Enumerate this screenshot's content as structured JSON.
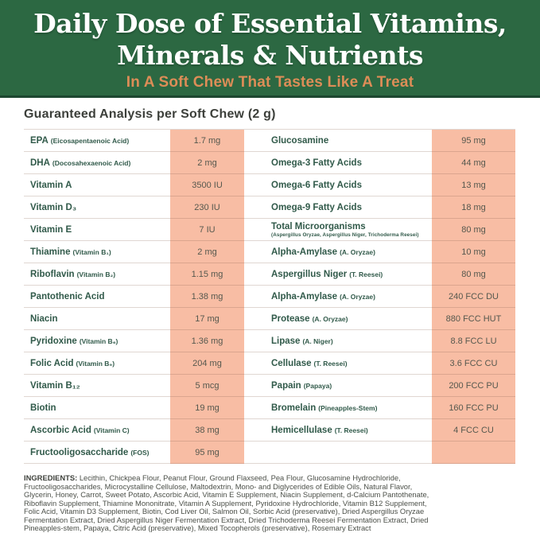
{
  "theme": {
    "header_green": "#2c6842",
    "header_green_dark": "#1d4730",
    "subtitle_orange": "#dd8d57",
    "value_cell_salmon": "#f8bda4",
    "nutrient_name_green": "#315a4a",
    "value_text": "#55584e"
  },
  "header": {
    "title_line1": "Daily Dose of Essential Vitamins,",
    "title_line2": "Minerals & Nutrients",
    "subtitle": "In A Soft Chew That Tastes Like A Treat"
  },
  "analysis": {
    "heading": "Guaranteed Analysis per Soft Chew (2 g)",
    "left_rows": [
      {
        "name": "EPA",
        "sub": "(Eicosapentaenoic Acid)",
        "value": "1.7 mg"
      },
      {
        "name": "DHA",
        "sub": "(Docosahexaenoic Acid)",
        "value": "2 mg"
      },
      {
        "name": "Vitamin A",
        "value": "3500 IU"
      },
      {
        "name": "Vitamin D₃",
        "value": "230 IU"
      },
      {
        "name": "Vitamin E",
        "value": "7 IU"
      },
      {
        "name": "Thiamine",
        "sub": "(Vitamin B₁)",
        "value": "2 mg"
      },
      {
        "name": "Riboflavin",
        "sub": "(Vitamin B₂)",
        "value": "1.15 mg"
      },
      {
        "name": "Pantothenic Acid",
        "value": "1.38 mg"
      },
      {
        "name": "Niacin",
        "value": "17 mg"
      },
      {
        "name": "Pyridoxine",
        "sub": "(Vitamin B₆)",
        "value": "1.36 mg"
      },
      {
        "name": "Folic Acid",
        "sub": "(Vitamin B₉)",
        "value": "204 mg"
      },
      {
        "name": "Vitamin B₁₂",
        "value": "5 mcg"
      },
      {
        "name": "Biotin",
        "value": "19 mg"
      },
      {
        "name": "Ascorbic Acid",
        "sub": "(Vitamin C)",
        "value": "38 mg"
      },
      {
        "name": "Fructooligosaccharide",
        "sub": "(FOS)",
        "value": "95 mg"
      }
    ],
    "right_rows": [
      {
        "name": "Glucosamine",
        "value": "95 mg"
      },
      {
        "name": "Omega-3 Fatty Acids",
        "value": "44 mg"
      },
      {
        "name": "Omega-6 Fatty Acids",
        "value": "13 mg"
      },
      {
        "name": "Omega-9 Fatty Acids",
        "value": "18 mg"
      },
      {
        "name": "Total Microorganisms",
        "note": "(Aspergillus Oryzae, Aspergillus Niger, Trichoderma Reesei)",
        "value": "80 mg"
      },
      {
        "name": "Alpha-Amylase",
        "sub": "(A. Oryzae)",
        "value": "10 mg"
      },
      {
        "name": "Aspergillus Niger",
        "sub": "(T. Reesei)",
        "value": "80 mg"
      },
      {
        "name": "Alpha-Amylase",
        "sub": "(A. Oryzae)",
        "value": "240 FCC DU"
      },
      {
        "name": "Protease",
        "sub": "(A. Oryzae)",
        "value": "880 FCC HUT"
      },
      {
        "name": "Lipase",
        "sub": "(A. Niger)",
        "value": "8.8 FCC LU"
      },
      {
        "name": "Cellulase",
        "sub": "(T. Reesei)",
        "value": "3.6 FCC CU"
      },
      {
        "name": "Papain",
        "sub": "(Papaya)",
        "value": "200 FCC PU"
      },
      {
        "name": "Bromelain",
        "sub": "(Pineapples-Stem)",
        "value": "160 FCC PU"
      },
      {
        "name": "Hemicellulase",
        "sub": "(T. Reesei)",
        "value": "4 FCC CU"
      },
      {
        "name": "",
        "value": ""
      }
    ]
  },
  "ingredients": {
    "label": "INGREDIENTS:",
    "lines": [
      "Lecithin, Chickpea Flour, Peanut Flour, Ground Flaxseed, Pea Flour, Glucosamine Hydrochloride,",
      "Fructooligosaccharides, Microcystalline Cellulose, Maltodextrin, Mono- and Diglycerides of Edible Oils, Natural Flavor,",
      "Glycerin, Honey, Carrot, Sweet Potato, Ascorbic Acid, Vitamin E Supplement, Niacin Supplement, d-Calcium Pantothenate,",
      "Riboflavin Supplement, Thiamine Mononitrate, Vitamin A Supplement, Pyridoxine Hydrochloride, Vitamin B12 Supplement,",
      "Folic Acid, Vitamin D3 Supplement, Biotin, Cod Liver Oil, Salmon Oil, Sorbic Acid (preservative), Dried Aspergillus Oryzae",
      "Fermentation Extract, Dried Aspergillus Niger Fermentation Extract, Dried Trichoderma Reesei Fermentation Extract, Dried",
      "Pineapples-stem, Papaya, Citric Acid (preservative), Mixed Tocopherols (preservative), Rosemary Extract"
    ]
  }
}
